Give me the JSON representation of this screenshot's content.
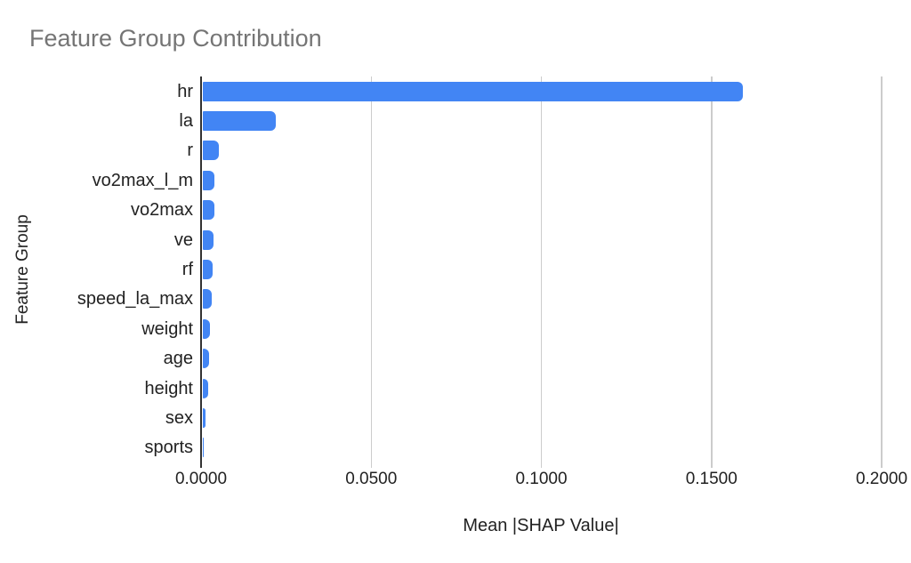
{
  "chart_data": {
    "type": "bar",
    "orientation": "horizontal",
    "title": "Feature Group Contribution",
    "xlabel": "Mean |SHAP Value|",
    "ylabel": "Feature Group",
    "categories": [
      "hr",
      "la",
      "r",
      "vo2max_l_m",
      "vo2max",
      "ve",
      "rf",
      "speed_la_max",
      "weight",
      "age",
      "height",
      "sex",
      "sports"
    ],
    "values": [
      0.1587,
      0.0214,
      0.0047,
      0.0034,
      0.0033,
      0.0031,
      0.003,
      0.0026,
      0.002,
      0.0019,
      0.0015,
      0.0009,
      0.0001
    ],
    "xlim": [
      0,
      0.2
    ],
    "xticks": [
      0,
      0.05,
      0.1,
      0.15,
      0.2
    ],
    "xtick_labels": [
      "0.0000",
      "0.0500",
      "0.1000",
      "0.1500",
      "0.2000"
    ],
    "grid": true,
    "legend": false,
    "colors": {
      "bar": "#4285f4",
      "gridline": "#cccccc",
      "axis_line": "#333333",
      "title_text": "#757575",
      "label_text": "#222222",
      "background": "#ffffff"
    }
  }
}
